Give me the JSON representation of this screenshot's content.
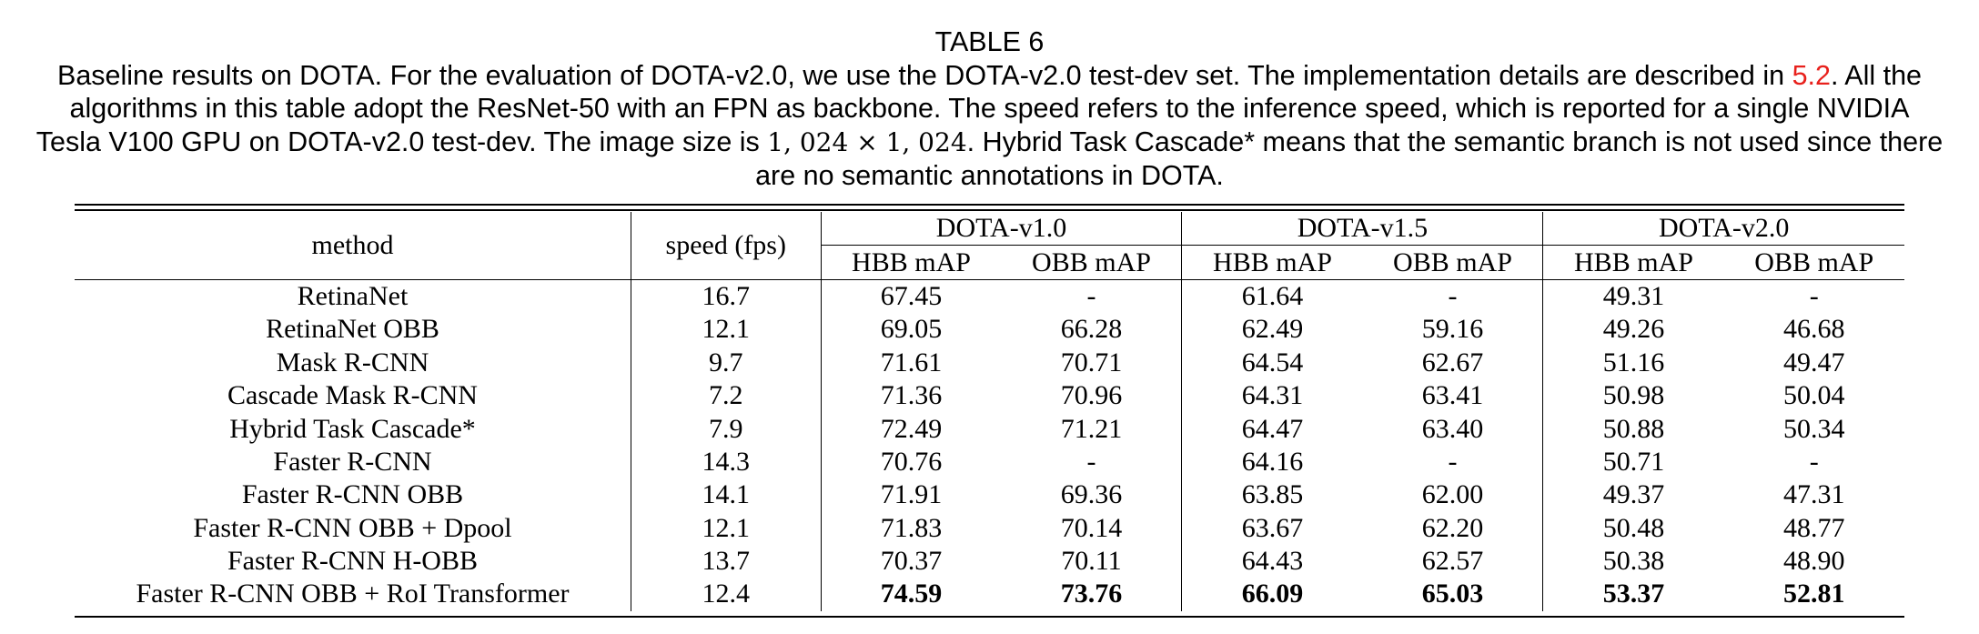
{
  "caption": {
    "table_label": "TABLE 6",
    "text_before_ref": "Baseline results on DOTA. For the evaluation of DOTA-v2.0, we use the DOTA-v2.0 test-dev set. The implementation details are described in ",
    "ref": "5.2",
    "text_after_ref": ". All the algorithms in this table adopt the ResNet-50 with an FPN as backbone. The speed refers to the inference speed, which is reported for a single NVIDIA Tesla V100 GPU on DOTA-v2.0 test-dev. The image size is ",
    "image_size": "1, 024 × 1, 024",
    "text_end": ". Hybrid Task Cascade* means that the semantic branch is not used since there are no semantic annotations in DOTA."
  },
  "table": {
    "col_method": "method",
    "col_speed": "speed (fps)",
    "groups": [
      "DOTA-v1.0",
      "DOTA-v1.5",
      "DOTA-v2.0"
    ],
    "sub_hbb": "HBB mAP",
    "sub_obb": "OBB mAP",
    "rows": [
      {
        "method": "RetinaNet",
        "speed": "16.7",
        "v10_hbb": "67.45",
        "v10_obb": "-",
        "v15_hbb": "61.64",
        "v15_obb": "-",
        "v20_hbb": "49.31",
        "v20_obb": "-"
      },
      {
        "method": "RetinaNet OBB",
        "speed": "12.1",
        "v10_hbb": "69.05",
        "v10_obb": "66.28",
        "v15_hbb": "62.49",
        "v15_obb": "59.16",
        "v20_hbb": "49.26",
        "v20_obb": "46.68"
      },
      {
        "method": "Mask R-CNN",
        "speed": "9.7",
        "v10_hbb": "71.61",
        "v10_obb": "70.71",
        "v15_hbb": "64.54",
        "v15_obb": "62.67",
        "v20_hbb": "51.16",
        "v20_obb": "49.47"
      },
      {
        "method": "Cascade Mask R-CNN",
        "speed": "7.2",
        "v10_hbb": "71.36",
        "v10_obb": "70.96",
        "v15_hbb": "64.31",
        "v15_obb": "63.41",
        "v20_hbb": "50.98",
        "v20_obb": "50.04"
      },
      {
        "method": "Hybrid Task Cascade*",
        "speed": "7.9",
        "v10_hbb": "72.49",
        "v10_obb": "71.21",
        "v15_hbb": "64.47",
        "v15_obb": "63.40",
        "v20_hbb": "50.88",
        "v20_obb": "50.34"
      },
      {
        "method": "Faster R-CNN",
        "speed": "14.3",
        "v10_hbb": "70.76",
        "v10_obb": "-",
        "v15_hbb": "64.16",
        "v15_obb": "-",
        "v20_hbb": "50.71",
        "v20_obb": "-"
      },
      {
        "method": "Faster R-CNN OBB",
        "speed": "14.1",
        "v10_hbb": "71.91",
        "v10_obb": "69.36",
        "v15_hbb": "63.85",
        "v15_obb": "62.00",
        "v20_hbb": "49.37",
        "v20_obb": "47.31"
      },
      {
        "method": "Faster R-CNN OBB + Dpool",
        "speed": "12.1",
        "v10_hbb": "71.83",
        "v10_obb": "70.14",
        "v15_hbb": "63.67",
        "v15_obb": "62.20",
        "v20_hbb": "50.48",
        "v20_obb": "48.77"
      },
      {
        "method": "Faster R-CNN H-OBB",
        "speed": "13.7",
        "v10_hbb": "70.37",
        "v10_obb": "70.11",
        "v15_hbb": "64.43",
        "v15_obb": "62.57",
        "v20_hbb": "50.38",
        "v20_obb": "48.90"
      },
      {
        "method": "Faster R-CNN OBB + RoI Transformer",
        "speed": "12.4",
        "v10_hbb": "74.59",
        "v10_obb": "73.76",
        "v15_hbb": "66.09",
        "v15_obb": "65.03",
        "v20_hbb": "53.37",
        "v20_obb": "52.81"
      }
    ]
  }
}
